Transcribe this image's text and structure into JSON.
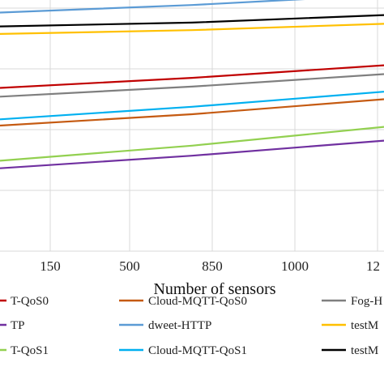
{
  "chart_data": {
    "type": "line",
    "xlabel": "Number of sensors",
    "x_ticks": [
      "150",
      "500",
      "850",
      "1000",
      "12"
    ],
    "grid": true,
    "legend_placement": "bottom",
    "series": [
      {
        "name": "dweet-HTTP",
        "color": "#5b9bd5",
        "y": [
          0.95,
          0.98,
          1.02
        ]
      },
      {
        "name": "",
        "color": "#000000",
        "y": [
          0.895,
          0.91,
          0.94
        ]
      },
      {
        "name": "",
        "color": "#ffc000",
        "y": [
          0.865,
          0.88,
          0.905
        ]
      },
      {
        "name": "",
        "color": "#c00000",
        "y": [
          0.65,
          0.69,
          0.74
        ]
      },
      {
        "name": "Fog-H",
        "color": "#7f7f7f",
        "y": [
          0.615,
          0.655,
          0.705
        ]
      },
      {
        "name": "Cloud-MQTT-QoS1",
        "color": "#00b0f0",
        "y": [
          0.525,
          0.575,
          0.635
        ]
      },
      {
        "name": "Cloud-MQTT-QoS0",
        "color": "#c55a11",
        "y": [
          0.5,
          0.545,
          0.605
        ]
      },
      {
        "name": "",
        "color": "#92d050",
        "y": [
          0.36,
          0.42,
          0.495
        ]
      },
      {
        "name": "",
        "color": "#7030a0",
        "y": [
          0.33,
          0.38,
          0.44
        ]
      }
    ],
    "legend": [
      {
        "label": "T-QoS0",
        "color": "#c00000"
      },
      {
        "label": "Cloud-MQTT-QoS0",
        "color": "#c55a11"
      },
      {
        "label": "Fog-H",
        "color": "#7f7f7f"
      },
      {
        "label": "TP",
        "color": "#7030a0"
      },
      {
        "label": "dweet-HTTP",
        "color": "#5b9bd5"
      },
      {
        "label": "testM",
        "color": "#ffc000"
      },
      {
        "label": "T-QoS1",
        "color": "#92d050"
      },
      {
        "label": "Cloud-MQTT-QoS1",
        "color": "#00b0f0"
      },
      {
        "label": "testM",
        "color": "#000000"
      }
    ]
  }
}
